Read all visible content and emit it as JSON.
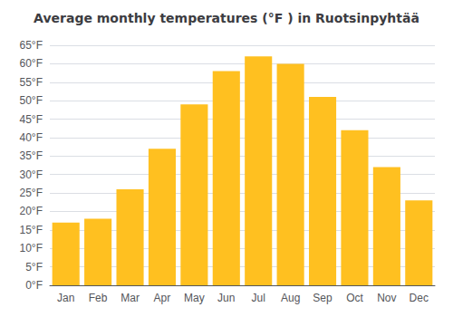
{
  "chart_data": {
    "type": "bar",
    "title": "Average monthly temperatures (°F ) in Ruotsinpyhtää",
    "categories": [
      "Jan",
      "Feb",
      "Mar",
      "Apr",
      "May",
      "Jun",
      "Jul",
      "Aug",
      "Sep",
      "Oct",
      "Nov",
      "Dec"
    ],
    "values": [
      17,
      18,
      26,
      37,
      49,
      58,
      62,
      60,
      51,
      42,
      32,
      23
    ],
    "color": "#FFC020",
    "ylim": [
      0,
      65
    ],
    "yticks": [
      {
        "value": 0,
        "label": "0°F"
      },
      {
        "value": 5,
        "label": "5°F"
      },
      {
        "value": 10,
        "label": "10°F"
      },
      {
        "value": 15,
        "label": "15°F"
      },
      {
        "value": 20,
        "label": "20°F"
      },
      {
        "value": 25,
        "label": "25°F"
      },
      {
        "value": 30,
        "label": "30°F"
      },
      {
        "value": 35,
        "label": "35°F"
      },
      {
        "value": 40,
        "label": "40°F"
      },
      {
        "value": 45,
        "label": "45°F"
      },
      {
        "value": 50,
        "label": "50°F"
      },
      {
        "value": 55,
        "label": "55°F"
      },
      {
        "value": 60,
        "label": "60°F"
      },
      {
        "value": 65,
        "label": "65°F"
      }
    ],
    "grid": true
  }
}
